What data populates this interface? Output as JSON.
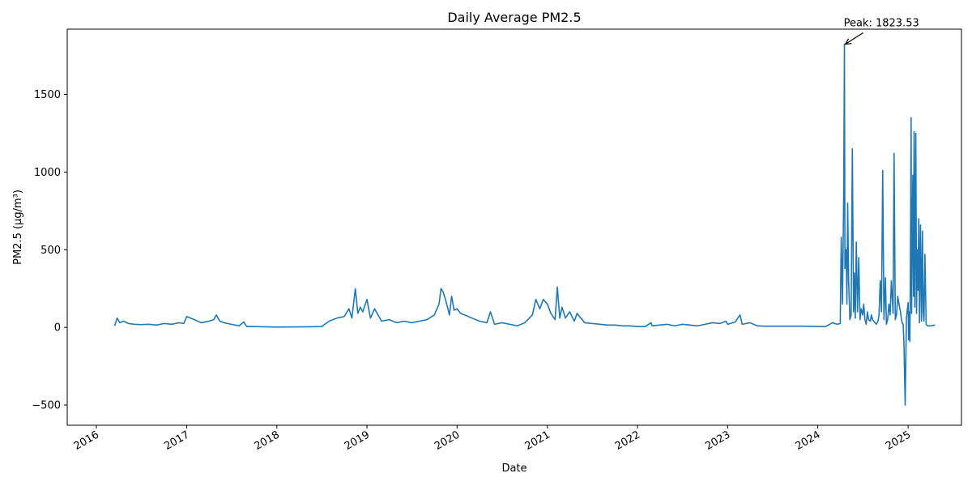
{
  "chart_data": {
    "type": "line",
    "title": "Daily Average PM2.5",
    "xlabel": "Date",
    "ylabel": "PM2.5 (µg/m³)",
    "xlim": [
      "2015-09-05",
      "2025-08-05"
    ],
    "ylim": [
      -630,
      1920
    ],
    "x_ticks": [
      "2016",
      "2017",
      "2018",
      "2019",
      "2020",
      "2021",
      "2022",
      "2023",
      "2024",
      "2025"
    ],
    "y_ticks": [
      -500,
      0,
      500,
      1000,
      1500
    ],
    "y_tick_labels": [
      "−500",
      "0",
      "500",
      "1000",
      "1500"
    ],
    "grid": false,
    "line_color": "#1f77b4",
    "annotation": {
      "text": "Peak: 1823.53",
      "x": "2024-04-15",
      "y": 1823.53
    },
    "series": [
      {
        "x": [
          "2016-03-15",
          "2016-03-25",
          "2016-04-05",
          "2016-04-20",
          "2016-05-10",
          "2016-06-01",
          "2016-07-01",
          "2016-08-01",
          "2016-09-01",
          "2016-10-01",
          "2016-11-01",
          "2016-12-01",
          "2016-12-20",
          "2017-01-01",
          "2017-02-01",
          "2017-03-01",
          "2017-04-01",
          "2017-04-20",
          "2017-05-01",
          "2017-05-15",
          "2017-06-01",
          "2017-07-01",
          "2017-08-01",
          "2017-08-20",
          "2017-09-01",
          "2017-10-01",
          "2018-01-01",
          "2018-04-01",
          "2018-07-01",
          "2018-08-01",
          "2018-09-01",
          "2018-10-01",
          "2018-10-20",
          "2018-11-01",
          "2018-11-15",
          "2018-11-25",
          "2018-12-05",
          "2018-12-15",
          "2019-01-01",
          "2019-01-15",
          "2019-02-01",
          "2019-03-01",
          "2019-04-01",
          "2019-05-01",
          "2019-06-01",
          "2019-07-01",
          "2019-08-01",
          "2019-09-01",
          "2019-10-01",
          "2019-10-20",
          "2019-10-28",
          "2019-11-05",
          "2019-11-15",
          "2019-11-25",
          "2019-12-01",
          "2019-12-10",
          "2019-12-20",
          "2020-01-01",
          "2020-01-15",
          "2020-02-01",
          "2020-03-01",
          "2020-04-01",
          "2020-05-01",
          "2020-05-15",
          "2020-06-01",
          "2020-07-01",
          "2020-08-01",
          "2020-09-01",
          "2020-10-01",
          "2020-11-01",
          "2020-11-15",
          "2020-12-01",
          "2020-12-15",
          "2021-01-01",
          "2021-01-15",
          "2021-02-01",
          "2021-02-10",
          "2021-02-20",
          "2021-03-01",
          "2021-03-15",
          "2021-04-01",
          "2021-04-20",
          "2021-05-01",
          "2021-06-01",
          "2021-07-01",
          "2021-08-01",
          "2021-09-01",
          "2021-10-01",
          "2021-11-01",
          "2021-12-01",
          "2022-01-01",
          "2022-02-01",
          "2022-02-25",
          "2022-03-01",
          "2022-04-01",
          "2022-05-01",
          "2022-06-01",
          "2022-07-01",
          "2022-08-01",
          "2022-09-01",
          "2022-10-01",
          "2022-11-01",
          "2022-12-01",
          "2022-12-25",
          "2023-01-01",
          "2023-02-01",
          "2023-02-20",
          "2023-03-01",
          "2023-04-01",
          "2023-05-01",
          "2023-06-01",
          "2023-07-01",
          "2023-08-01",
          "2023-09-01",
          "2023-10-01",
          "2023-11-01",
          "2024-02-01",
          "2024-03-01",
          "2024-03-20",
          "2024-04-01",
          "2024-04-05",
          "2024-04-10",
          "2024-04-15",
          "2024-04-18",
          "2024-04-20",
          "2024-04-25",
          "2024-04-28",
          "2024-05-01",
          "2024-05-05",
          "2024-05-10",
          "2024-05-15",
          "2024-05-20",
          "2024-05-25",
          "2024-05-28",
          "2024-06-01",
          "2024-06-05",
          "2024-06-10",
          "2024-06-15",
          "2024-06-20",
          "2024-06-25",
          "2024-07-01",
          "2024-07-05",
          "2024-07-10",
          "2024-07-15",
          "2024-07-20",
          "2024-07-25",
          "2024-08-01",
          "2024-08-05",
          "2024-08-10",
          "2024-08-20",
          "2024-08-25",
          "2024-09-01",
          "2024-09-05",
          "2024-09-10",
          "2024-09-15",
          "2024-09-20",
          "2024-09-25",
          "2024-10-01",
          "2024-10-05",
          "2024-10-10",
          "2024-10-15",
          "2024-10-20",
          "2024-10-25",
          "2024-11-01",
          "2024-11-05",
          "2024-11-10",
          "2024-11-15",
          "2024-11-20",
          "2024-11-25",
          "2024-12-01",
          "2024-12-05",
          "2024-12-08",
          "2024-12-12",
          "2024-12-15",
          "2024-12-20",
          "2024-12-25",
          "2025-01-01",
          "2025-01-03",
          "2025-01-05",
          "2025-01-08",
          "2025-01-10",
          "2025-01-13",
          "2025-01-15",
          "2025-01-18",
          "2025-01-20",
          "2025-01-23",
          "2025-01-25",
          "2025-01-28",
          "2025-02-01",
          "2025-02-04",
          "2025-02-07",
          "2025-02-10",
          "2025-02-13",
          "2025-02-16",
          "2025-02-20",
          "2025-02-24",
          "2025-02-28",
          "2025-03-03",
          "2025-03-06",
          "2025-03-10",
          "2025-03-15",
          "2025-03-20",
          "2025-04-01",
          "2025-04-20"
        ],
        "values": [
          10,
          60,
          30,
          40,
          25,
          20,
          18,
          20,
          15,
          25,
          20,
          30,
          25,
          70,
          50,
          30,
          40,
          50,
          80,
          40,
          30,
          20,
          10,
          35,
          5,
          5,
          2,
          3,
          5,
          40,
          60,
          70,
          120,
          60,
          250,
          90,
          130,
          100,
          180,
          60,
          120,
          40,
          50,
          30,
          40,
          30,
          40,
          50,
          80,
          150,
          250,
          230,
          180,
          120,
          80,
          200,
          110,
          120,
          90,
          80,
          60,
          40,
          30,
          100,
          20,
          30,
          20,
          10,
          30,
          80,
          180,
          120,
          180,
          150,
          90,
          50,
          260,
          60,
          130,
          60,
          100,
          40,
          90,
          30,
          25,
          20,
          15,
          15,
          10,
          10,
          5,
          5,
          30,
          10,
          15,
          20,
          10,
          20,
          15,
          10,
          20,
          30,
          25,
          40,
          20,
          35,
          80,
          20,
          30,
          10,
          8,
          8,
          8,
          8,
          8,
          8,
          5,
          30,
          20,
          25,
          580,
          150,
          850,
          1823,
          380,
          500,
          150,
          800,
          300,
          50,
          80,
          1150,
          100,
          350,
          60,
          550,
          100,
          450,
          50,
          120,
          80,
          150,
          50,
          20,
          100,
          50,
          40,
          80,
          50,
          30,
          20,
          40,
          80,
          300,
          100,
          1010,
          50,
          320,
          20,
          50,
          150,
          80,
          300,
          90,
          1120,
          50,
          80,
          200,
          150,
          100,
          50,
          30,
          20,
          -100,
          -500,
          60,
          160,
          -80,
          100,
          -90,
          350,
          1350,
          90,
          580,
          980,
          200,
          1260,
          130,
          1250,
          90,
          500,
          240,
          700,
          30,
          660,
          40,
          620,
          100,
          40,
          470,
          20,
          10,
          10,
          15
        ]
      }
    ]
  }
}
